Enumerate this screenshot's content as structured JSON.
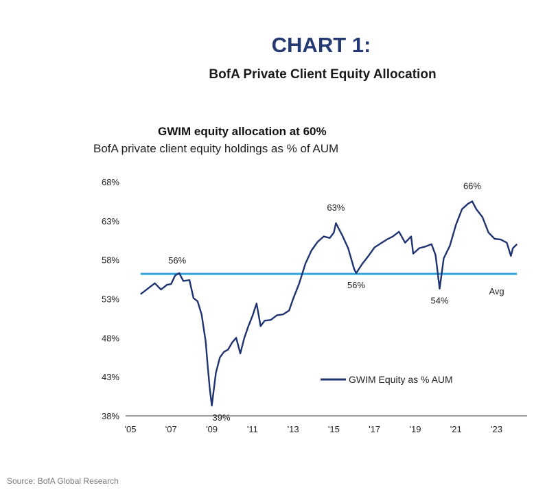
{
  "header": {
    "chart_number": "CHART 1:",
    "subtitle": "BofA Private Client Equity Allocation"
  },
  "source": "Source: BofA Global Research",
  "colors": {
    "series": "#1f3371",
    "average": "#2aa6dc",
    "heading": "#253a73"
  },
  "chart_data": {
    "type": "line",
    "title": "GWIM equity allocation at 60%",
    "subtitle": "BofA private client equity holdings as % of AUM",
    "xlabel": "",
    "ylabel": "",
    "xlim": [
      2005,
      2024.5
    ],
    "ylim": [
      38,
      68
    ],
    "y_ticks": [
      38,
      43,
      48,
      53,
      58,
      63,
      68
    ],
    "y_tick_labels": [
      "38%",
      "43%",
      "48%",
      "53%",
      "58%",
      "63%",
      "68%"
    ],
    "x_ticks": [
      2005,
      2007,
      2009,
      2011,
      2013,
      2015,
      2017,
      2019,
      2021,
      2023
    ],
    "x_tick_labels": [
      "'05",
      "'07",
      "'09",
      "'11",
      "'13",
      "'15",
      "'17",
      "'19",
      "'21",
      "'23"
    ],
    "legend": {
      "position": "bottom-right",
      "label": "GWIM Equity as % AUM"
    },
    "average": {
      "value": 56.2,
      "label": "Avg"
    },
    "annotations": [
      {
        "label": "56%",
        "x": 2007.3,
        "y": 56.3
      },
      {
        "label": "39%",
        "x": 2009.0,
        "y": 39.3
      },
      {
        "label": "63%",
        "x": 2015.1,
        "y": 62.7
      },
      {
        "label": "56%",
        "x": 2016.1,
        "y": 56.3
      },
      {
        "label": "54%",
        "x": 2020.2,
        "y": 54.3
      },
      {
        "label": "66%",
        "x": 2021.8,
        "y": 65.5
      }
    ],
    "series": [
      {
        "name": "GWIM Equity as % AUM",
        "x": [
          2005.5,
          2005.8,
          2006.0,
          2006.2,
          2006.5,
          2006.8,
          2007.0,
          2007.2,
          2007.4,
          2007.6,
          2007.9,
          2008.1,
          2008.3,
          2008.5,
          2008.7,
          2008.8,
          2008.9,
          2009.0,
          2009.2,
          2009.4,
          2009.6,
          2009.8,
          2010.0,
          2010.2,
          2010.4,
          2010.6,
          2010.8,
          2011.0,
          2011.2,
          2011.4,
          2011.6,
          2011.9,
          2012.2,
          2012.5,
          2012.8,
          2013.0,
          2013.3,
          2013.6,
          2013.9,
          2014.2,
          2014.5,
          2014.8,
          2015.0,
          2015.1,
          2015.4,
          2015.7,
          2016.0,
          2016.1,
          2016.4,
          2016.7,
          2017.0,
          2017.3,
          2017.6,
          2017.9,
          2018.2,
          2018.5,
          2018.8,
          2018.9,
          2019.2,
          2019.5,
          2019.8,
          2020.0,
          2020.2,
          2020.4,
          2020.7,
          2021.0,
          2021.3,
          2021.6,
          2021.8,
          2022.0,
          2022.3,
          2022.6,
          2022.9,
          2023.2,
          2023.5,
          2023.7,
          2023.8,
          2024.0
        ],
        "values": [
          53.6,
          54.2,
          54.6,
          55.0,
          54.2,
          54.8,
          54.9,
          56.0,
          56.3,
          55.3,
          55.4,
          53.1,
          52.7,
          51.0,
          47.5,
          44.4,
          41.5,
          39.3,
          43.5,
          45.5,
          46.2,
          46.5,
          47.4,
          48.0,
          46.0,
          48.0,
          49.5,
          50.8,
          52.4,
          49.5,
          50.2,
          50.3,
          50.9,
          51.0,
          51.5,
          53.0,
          55.0,
          57.5,
          59.2,
          60.3,
          61.0,
          60.8,
          61.5,
          62.7,
          61.2,
          59.5,
          56.8,
          56.3,
          57.5,
          58.5,
          59.6,
          60.1,
          60.6,
          61.0,
          61.6,
          60.2,
          61.0,
          58.8,
          59.5,
          59.7,
          60.0,
          58.6,
          54.3,
          58.2,
          59.8,
          62.5,
          64.5,
          65.2,
          65.5,
          64.5,
          63.5,
          61.5,
          60.7,
          60.6,
          60.2,
          58.5,
          59.5,
          60.0
        ]
      }
    ]
  }
}
